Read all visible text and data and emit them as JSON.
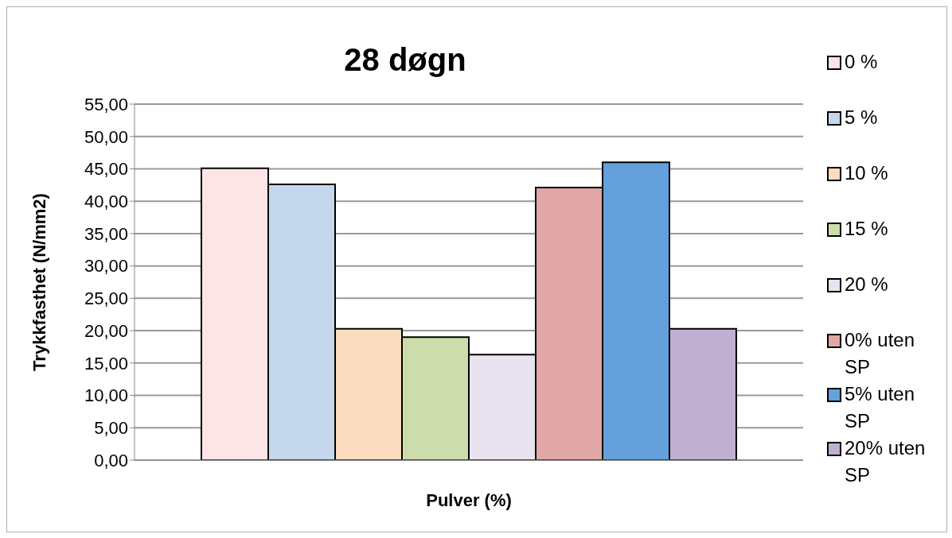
{
  "chart_data": {
    "type": "bar",
    "title": "28 døgn",
    "xlabel": "Pulver (%)",
    "ylabel": "Trykkfasthet (N/mm2)",
    "categories": [
      null
    ],
    "series": [
      {
        "name": "0 %",
        "color": "#fde4e6",
        "values": [
          45.1
        ]
      },
      {
        "name": "5 %",
        "color": "#c4d7ec",
        "values": [
          42.6
        ]
      },
      {
        "name": "10 %",
        "color": "#fbdcc0",
        "values": [
          20.3
        ]
      },
      {
        "name": "15 %",
        "color": "#cddcab",
        "values": [
          19.0
        ]
      },
      {
        "name": "20 %",
        "color": "#e9e3ef",
        "values": [
          16.3
        ]
      },
      {
        "name": "0% uten SP",
        "color": "#e1a7a6",
        "values": [
          42.1
        ]
      },
      {
        "name": "5% uten SP",
        "color": "#63a0dc",
        "values": [
          46.0
        ]
      },
      {
        "name": "20% uten SP",
        "color": "#bfb0d2",
        "values": [
          20.3
        ]
      }
    ],
    "ylim": [
      0,
      55
    ],
    "yticks": [
      {
        "value": 0,
        "label": "0,00"
      },
      {
        "value": 5,
        "label": "5,00"
      },
      {
        "value": 10,
        "label": "10,00"
      },
      {
        "value": 15,
        "label": "15,00"
      },
      {
        "value": 20,
        "label": "20,00"
      },
      {
        "value": 25,
        "label": "25,00"
      },
      {
        "value": 30,
        "label": "30,00"
      },
      {
        "value": 35,
        "label": "35,00"
      },
      {
        "value": 40,
        "label": "40,00"
      },
      {
        "value": 45,
        "label": "45,00"
      },
      {
        "value": 50,
        "label": "50,00"
      },
      {
        "value": 55,
        "label": "55,00"
      }
    ],
    "grid": "y",
    "legend": "right"
  }
}
